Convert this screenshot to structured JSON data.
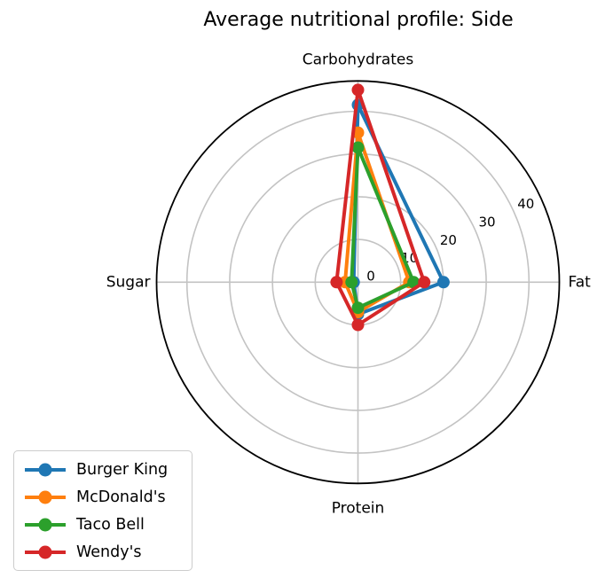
{
  "chart_data": {
    "type": "radar",
    "title": "Average nutritional profile: Side",
    "categories": [
      "Carbohydrates",
      "Fat",
      "Protein",
      "Sugar"
    ],
    "category_angles_deg": [
      90,
      0,
      270,
      180
    ],
    "radial_ticks": [
      0,
      10,
      20,
      30,
      40
    ],
    "rmax": 47.1,
    "grid": true,
    "tick_label_angle_deg": 25,
    "legend_position": "lower-left",
    "grid_color": "#c3c3c3",
    "outline_color": "#000000",
    "series": [
      {
        "name": "Burger King",
        "color": "#1f77b4",
        "values": [
          41.5,
          20,
          7.5,
          1
        ]
      },
      {
        "name": "McDonald's",
        "color": "#ff7f0e",
        "values": [
          35,
          12,
          7,
          3
        ]
      },
      {
        "name": "Taco Bell",
        "color": "#2ca02c",
        "values": [
          31.5,
          13,
          6,
          1.5
        ]
      },
      {
        "name": "Wendy's",
        "color": "#d62728",
        "values": [
          45,
          15.5,
          10,
          5
        ]
      }
    ]
  }
}
